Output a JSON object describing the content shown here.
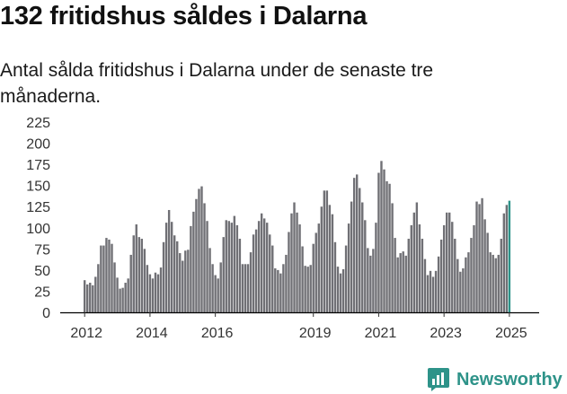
{
  "title": "132 fritidshus såldes i Dalarna",
  "subtitle": "Antal sålda fritidshus i Dalarna under de senaste tre månaderna.",
  "brand": {
    "name": "Newsworthy",
    "icon": "newsworthy-logo-icon",
    "color": "#2e9389"
  },
  "colors": {
    "bar": "#707075",
    "highlight": "#2e9389",
    "axis": "#000000"
  },
  "chart_data": {
    "type": "bar",
    "ylim": [
      0,
      225
    ],
    "yticks": [
      0,
      25,
      50,
      75,
      100,
      125,
      150,
      175,
      200,
      225
    ],
    "xticks": [
      {
        "label": "2012",
        "index": 0
      },
      {
        "label": "2014",
        "index": 24
      },
      {
        "label": "2016",
        "index": 48
      },
      {
        "label": "2019",
        "index": 84
      },
      {
        "label": "2021",
        "index": 108
      },
      {
        "label": "2023",
        "index": 132
      },
      {
        "label": "2025",
        "index": 156
      }
    ],
    "annotation": {
      "label": "132",
      "index": 163
    },
    "values": [
      38,
      33,
      35,
      32,
      42,
      57,
      79,
      79,
      88,
      86,
      81,
      59,
      41,
      28,
      29,
      35,
      40,
      68,
      91,
      104,
      89,
      87,
      75,
      56,
      45,
      40,
      47,
      45,
      53,
      83,
      106,
      121,
      107,
      91,
      84,
      70,
      61,
      73,
      74,
      102,
      119,
      134,
      146,
      149,
      129,
      108,
      76,
      57,
      44,
      40,
      59,
      89,
      109,
      108,
      106,
      114,
      103,
      87,
      57,
      57,
      57,
      71,
      92,
      98,
      108,
      117,
      111,
      106,
      92,
      79,
      52,
      50,
      46,
      57,
      68,
      95,
      117,
      130,
      118,
      104,
      78,
      55,
      54,
      56,
      81,
      94,
      105,
      125,
      144,
      144,
      127,
      116,
      83,
      54,
      46,
      51,
      79,
      105,
      131,
      159,
      163,
      147,
      130,
      109,
      76,
      67,
      75,
      106,
      165,
      179,
      169,
      155,
      152,
      129,
      88,
      65,
      70,
      72,
      67,
      87,
      103,
      118,
      130,
      104,
      87,
      63,
      44,
      49,
      42,
      49,
      66,
      86,
      103,
      118,
      118,
      107,
      87,
      63,
      48,
      52,
      65,
      71,
      88,
      103,
      131,
      128,
      135,
      110,
      94,
      71,
      68,
      64,
      68,
      87,
      117,
      127,
      132
    ]
  }
}
